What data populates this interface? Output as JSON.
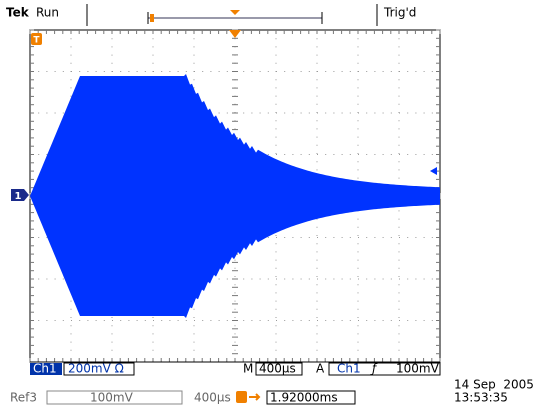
{
  "top_bar": {
    "brand": "Tek",
    "state": "Run",
    "trigger_status": "Trig'd"
  },
  "markers": {
    "trigger": "T",
    "channel": "1"
  },
  "readout": {
    "channel": "Ch1",
    "scale": "200mV Ω",
    "time_prefix": "M",
    "time_scale": "400µs",
    "trigger_prefix": "A",
    "trigger_source": "Ch1",
    "trigger_slope": "ƒ",
    "trigger_level": "100mV"
  },
  "reference": {
    "name": "Ref3",
    "scale": "100mV",
    "time_scale": "400µs",
    "position": "1.92000ms"
  },
  "timestamp": {
    "date": "14 Sep  2005",
    "time": "13:53:35"
  }
}
